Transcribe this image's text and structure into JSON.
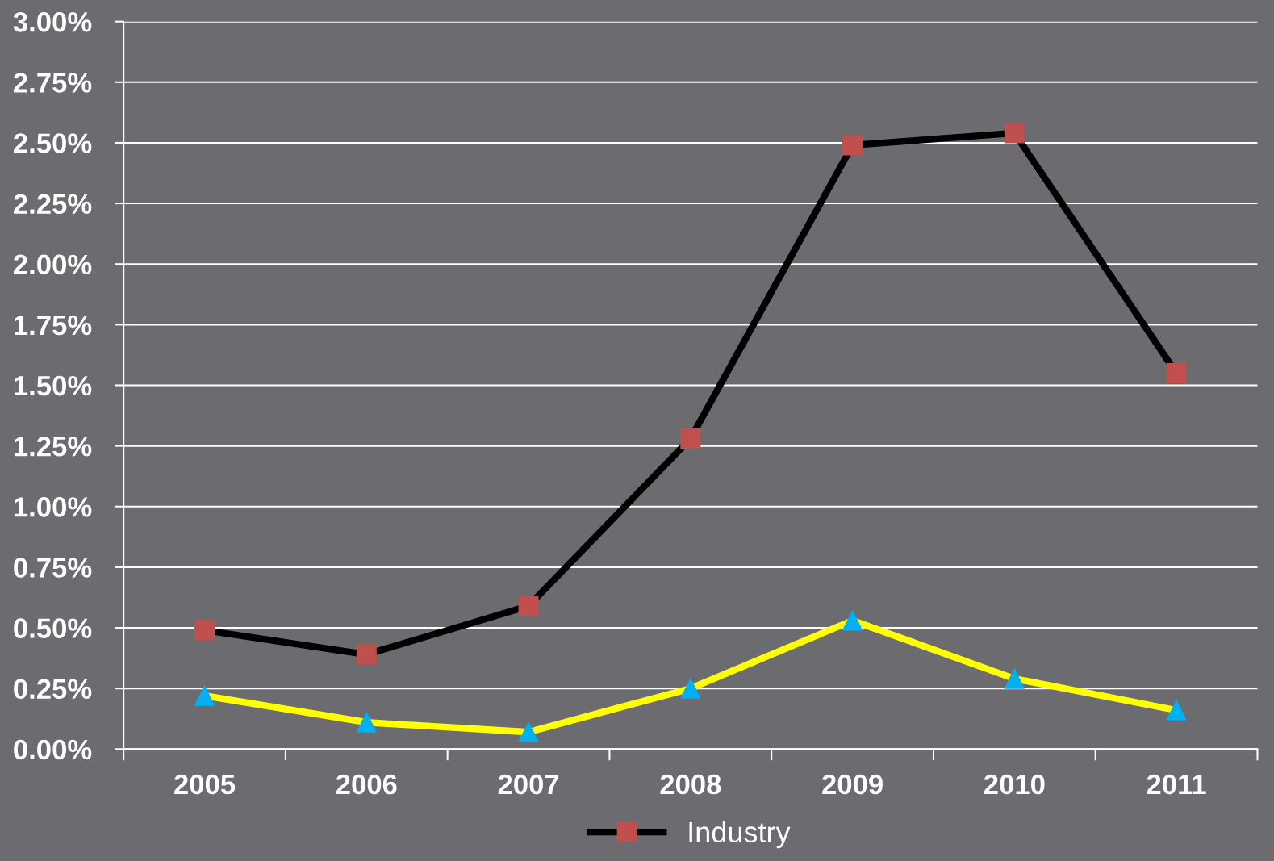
{
  "chart_data": {
    "type": "line",
    "categories": [
      "2005",
      "2006",
      "2007",
      "2008",
      "2009",
      "2010",
      "2011"
    ],
    "series": [
      {
        "color": "#ffff00",
        "marker": "triangle",
        "values": [
          0.22,
          0.11,
          0.07,
          0.25,
          0.53,
          0.29,
          0.16
        ]
      },
      {
        "name": "Industry",
        "color": "#000000",
        "marker": "square",
        "values": [
          0.49,
          0.39,
          0.59,
          1.28,
          2.49,
          2.54,
          1.55
        ]
      }
    ],
    "ylim": [
      0,
      3
    ],
    "yticks": [
      {
        "value": 0,
        "label": "0.00%"
      },
      {
        "value": 0.25,
        "label": "0.25%"
      },
      {
        "value": 0.5,
        "label": "0.50%"
      },
      {
        "value": 0.75,
        "label": "0.75%"
      },
      {
        "value": 1,
        "label": "1.00%"
      },
      {
        "value": 1.25,
        "label": "1.25%"
      },
      {
        "value": 1.5,
        "label": "1.50%"
      },
      {
        "value": 1.75,
        "label": "1.75%"
      },
      {
        "value": 2,
        "label": "2.00%"
      },
      {
        "value": 2.25,
        "label": "2.25%"
      },
      {
        "value": 2.5,
        "label": "2.50%"
      },
      {
        "value": 2.75,
        "label": "2.75%"
      },
      {
        "value": 3,
        "label": "3.00%"
      }
    ],
    "grid": "y",
    "legend": "bottom",
    "line_style": "solid"
  }
}
